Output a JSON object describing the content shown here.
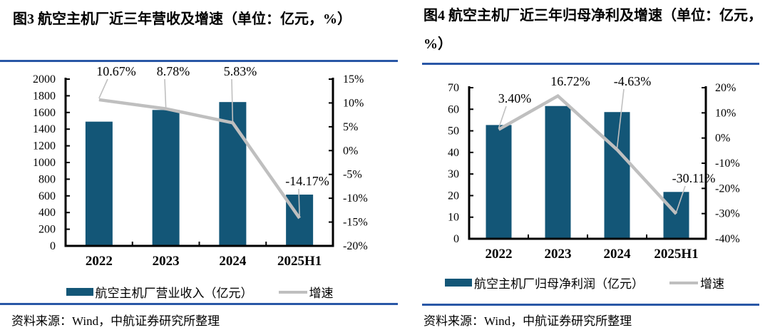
{
  "colors": {
    "bar": "#135677",
    "line": "#BFBFBF",
    "leader": "#C0C0C0",
    "rule": "#2957A6",
    "axis": "#000000"
  },
  "chart_data": [
    {
      "id": "fig3",
      "type": "bar+line",
      "title": "图3 航空主机厂近三年营收及增速（单位：亿元，%）",
      "categories": [
        "2022",
        "2023",
        "2024",
        "2025H1"
      ],
      "series": [
        {
          "name": "航空主机厂营业收入（亿元）",
          "type": "bar",
          "axis": "left",
          "values": [
            1490,
            1630,
            1725,
            615
          ]
        },
        {
          "name": "增速",
          "type": "line",
          "axis": "right",
          "values": [
            10.67,
            8.78,
            5.83,
            -14.17
          ],
          "point_labels": [
            "10.67%",
            "8.78%",
            "5.83%",
            "-14.17%"
          ]
        }
      ],
      "left_axis": {
        "min": 0,
        "max": 2000,
        "step": 200
      },
      "right_axis": {
        "min": -20,
        "max": 15,
        "step": 5,
        "suffix": "%"
      },
      "legend_position": "bottom",
      "source": "资料来源：Wind，中航证券研究所整理"
    },
    {
      "id": "fig4",
      "type": "bar+line",
      "title": "图4 航空主机厂近三年归母净利及增速（单位：亿元，%）",
      "categories": [
        "2022",
        "2023",
        "2024",
        "2025H1"
      ],
      "series": [
        {
          "name": "航空主机厂归母净利润（亿元）",
          "type": "bar",
          "axis": "left",
          "values": [
            52.7,
            61.5,
            58.7,
            21.7
          ]
        },
        {
          "name": "增速",
          "type": "line",
          "axis": "right",
          "values": [
            3.4,
            16.72,
            -4.63,
            -30.11
          ],
          "point_labels": [
            "3.40%",
            "16.72%",
            "-4.63%",
            "-30.11%"
          ]
        }
      ],
      "left_axis": {
        "min": 0,
        "max": 70,
        "step": 10
      },
      "right_axis": {
        "min": -40,
        "max": 20,
        "step": 10,
        "suffix": "%"
      },
      "legend_position": "bottom",
      "source": "资料来源：Wind，中航证券研究所整理"
    }
  ]
}
